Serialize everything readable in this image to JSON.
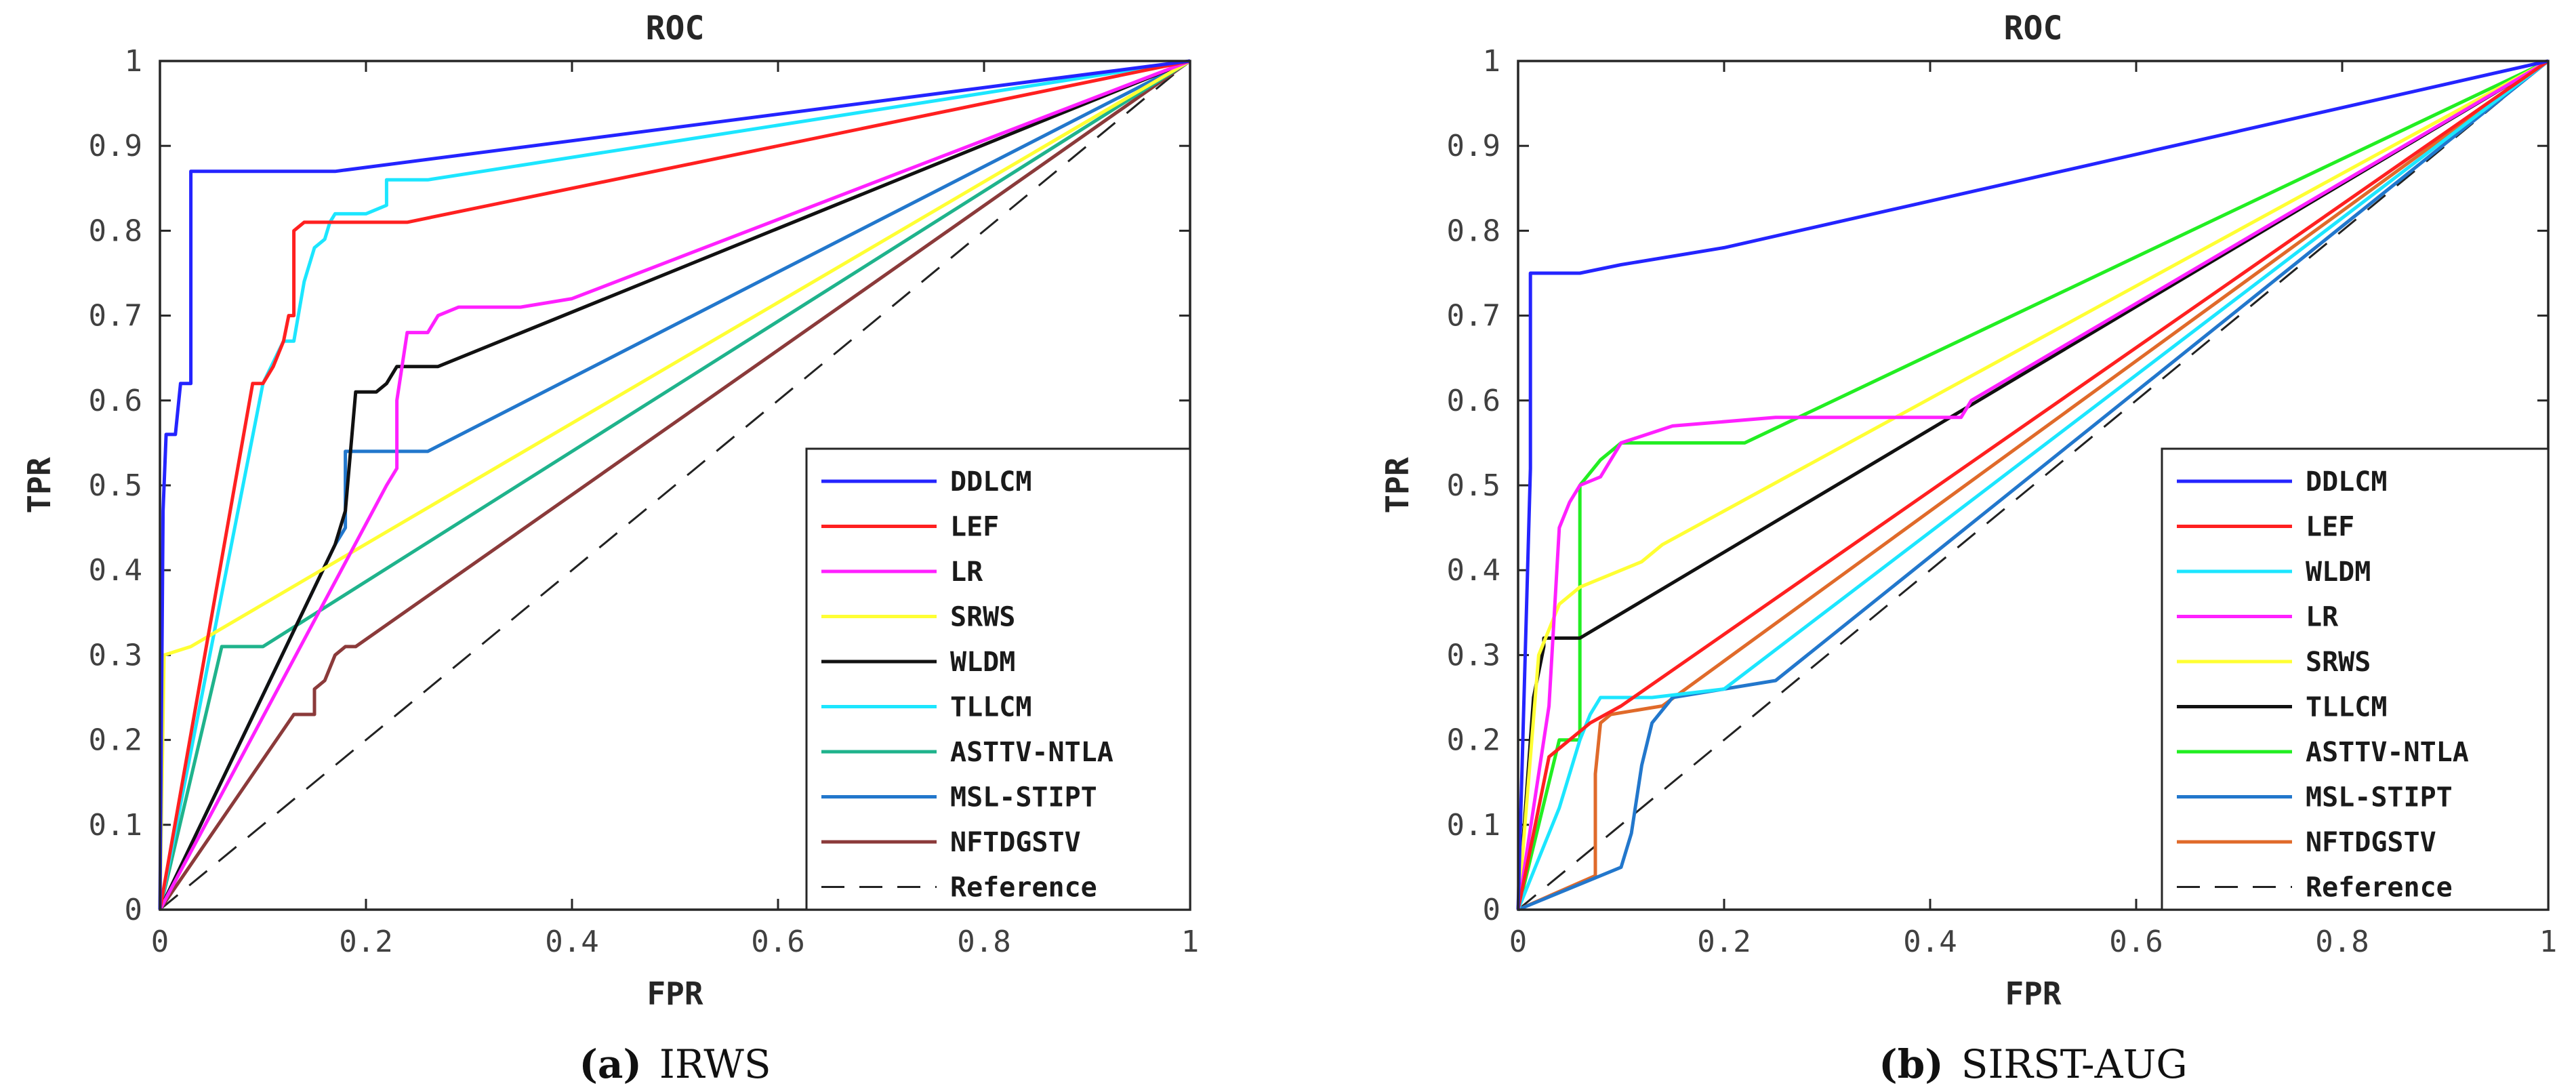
{
  "chart_data": [
    {
      "type": "line",
      "title": "ROC",
      "xlabel": "FPR",
      "ylabel": "TPR",
      "xlim": [
        0,
        1
      ],
      "ylim": [
        0,
        1
      ],
      "xticks": [
        "0",
        "0.2",
        "0.4",
        "0.6",
        "0.8",
        "1"
      ],
      "yticks": [
        "0",
        "0.1",
        "0.2",
        "0.3",
        "0.4",
        "0.5",
        "0.6",
        "0.7",
        "0.8",
        "0.9",
        "1"
      ],
      "legend_position": "bottom-right",
      "caption": {
        "label": "(a)",
        "text": "IRWS"
      },
      "series": [
        {
          "name": "DDLCM",
          "color": "#2424ff",
          "dash": "solid",
          "x": [
            0,
            0.003,
            0.006,
            0.015,
            0.02,
            0.03,
            0.03,
            0.17,
            1
          ],
          "y": [
            0,
            0.47,
            0.56,
            0.56,
            0.62,
            0.62,
            0.87,
            0.87,
            1
          ]
        },
        {
          "name": "LEF",
          "color": "#ff2020",
          "dash": "solid",
          "x": [
            0,
            0.09,
            0.1,
            0.11,
            0.12,
            0.125,
            0.13,
            0.13,
            0.14,
            0.24,
            1
          ],
          "y": [
            0,
            0.62,
            0.62,
            0.64,
            0.67,
            0.7,
            0.7,
            0.8,
            0.81,
            0.81,
            1
          ]
        },
        {
          "name": "LR",
          "color": "#ff20ff",
          "dash": "solid",
          "x": [
            0,
            0.22,
            0.23,
            0.23,
            0.24,
            0.26,
            0.27,
            0.29,
            0.35,
            0.4,
            1
          ],
          "y": [
            0,
            0.5,
            0.52,
            0.6,
            0.68,
            0.68,
            0.7,
            0.71,
            0.71,
            0.72,
            1
          ]
        },
        {
          "name": "SRWS",
          "color": "#ffff33",
          "dash": "solid",
          "x": [
            0,
            0.004,
            0.03,
            1
          ],
          "y": [
            0,
            0.3,
            0.31,
            1
          ]
        },
        {
          "name": "WLDM",
          "color": "#111111",
          "dash": "solid",
          "x": [
            0,
            0.17,
            0.18,
            0.19,
            0.21,
            0.22,
            0.23,
            0.27,
            1
          ],
          "y": [
            0,
            0.43,
            0.47,
            0.61,
            0.61,
            0.62,
            0.64,
            0.64,
            1
          ]
        },
        {
          "name": "TLLCM",
          "color": "#1ce6ff",
          "dash": "solid",
          "x": [
            0,
            0.1,
            0.12,
            0.13,
            0.14,
            0.15,
            0.16,
            0.165,
            0.17,
            0.2,
            0.22,
            0.22,
            0.26,
            1
          ],
          "y": [
            0,
            0.62,
            0.67,
            0.67,
            0.74,
            0.78,
            0.79,
            0.81,
            0.82,
            0.82,
            0.83,
            0.86,
            0.86,
            1
          ]
        },
        {
          "name": "ASTTV-NTLA",
          "color": "#1fb38c",
          "dash": "solid",
          "x": [
            0,
            0.06,
            0.1,
            1
          ],
          "y": [
            0,
            0.31,
            0.31,
            1
          ]
        },
        {
          "name": "MSL-STIPT",
          "color": "#2277cc",
          "dash": "solid",
          "x": [
            0,
            0.17,
            0.18,
            0.18,
            0.2,
            0.26,
            1
          ],
          "y": [
            0,
            0.43,
            0.45,
            0.54,
            0.54,
            0.54,
            1
          ]
        },
        {
          "name": "NFTDGSTV",
          "color": "#8b3a3a",
          "dash": "solid",
          "x": [
            0,
            0.13,
            0.15,
            0.15,
            0.16,
            0.17,
            0.18,
            0.19,
            1
          ],
          "y": [
            0,
            0.23,
            0.23,
            0.26,
            0.27,
            0.3,
            0.31,
            0.31,
            1
          ]
        },
        {
          "name": "Reference",
          "color": "#222222",
          "dash": "dashed",
          "x": [
            0,
            1
          ],
          "y": [
            0,
            1
          ]
        }
      ]
    },
    {
      "type": "line",
      "title": "ROC",
      "xlabel": "FPR",
      "ylabel": "TPR",
      "xlim": [
        0,
        1
      ],
      "ylim": [
        0,
        1
      ],
      "xticks": [
        "0",
        "0.2",
        "0.4",
        "0.6",
        "0.8",
        "1"
      ],
      "yticks": [
        "0",
        "0.1",
        "0.2",
        "0.3",
        "0.4",
        "0.5",
        "0.6",
        "0.7",
        "0.8",
        "0.9",
        "1"
      ],
      "legend_position": "bottom-right",
      "caption": {
        "label": "(b)",
        "text": "SIRST-AUG"
      },
      "series": [
        {
          "name": "DDLCM",
          "color": "#2424ff",
          "dash": "solid",
          "x": [
            0,
            0.012,
            0.012,
            0.06,
            0.1,
            0.15,
            0.2,
            1
          ],
          "y": [
            0,
            0.52,
            0.75,
            0.75,
            0.76,
            0.77,
            0.78,
            1
          ]
        },
        {
          "name": "LEF",
          "color": "#ff2020",
          "dash": "solid",
          "x": [
            0,
            0.03,
            0.05,
            0.07,
            0.1,
            1
          ],
          "y": [
            0,
            0.18,
            0.2,
            0.22,
            0.24,
            1
          ]
        },
        {
          "name": "WLDM",
          "color": "#1ce6ff",
          "dash": "solid",
          "x": [
            0,
            0.04,
            0.06,
            0.07,
            0.08,
            0.13,
            0.2,
            1
          ],
          "y": [
            0,
            0.12,
            0.2,
            0.23,
            0.25,
            0.25,
            0.26,
            1
          ]
        },
        {
          "name": "LR",
          "color": "#ff20ff",
          "dash": "solid",
          "x": [
            0,
            0.03,
            0.04,
            0.05,
            0.06,
            0.08,
            0.1,
            0.15,
            0.25,
            0.43,
            0.44,
            1
          ],
          "y": [
            0,
            0.24,
            0.45,
            0.48,
            0.5,
            0.51,
            0.55,
            0.57,
            0.58,
            0.58,
            0.6,
            1
          ]
        },
        {
          "name": "SRWS",
          "color": "#ffff33",
          "dash": "solid",
          "x": [
            0,
            0.02,
            0.04,
            0.06,
            0.08,
            0.12,
            0.14,
            1
          ],
          "y": [
            0,
            0.3,
            0.36,
            0.38,
            0.39,
            0.41,
            0.43,
            1
          ]
        },
        {
          "name": "TLLCM",
          "color": "#111111",
          "dash": "solid",
          "x": [
            0,
            0.015,
            0.025,
            0.025,
            0.06,
            1
          ],
          "y": [
            0,
            0.25,
            0.31,
            0.32,
            0.32,
            1
          ]
        },
        {
          "name": "ASTTV-NTLA",
          "color": "#22ee22",
          "dash": "solid",
          "x": [
            0,
            0.04,
            0.06,
            0.06,
            0.08,
            0.1,
            0.22,
            1
          ],
          "y": [
            0,
            0.2,
            0.2,
            0.5,
            0.53,
            0.55,
            0.55,
            1
          ]
        },
        {
          "name": "MSL-STIPT",
          "color": "#2277cc",
          "dash": "solid",
          "x": [
            0,
            0.1,
            0.11,
            0.12,
            0.13,
            0.15,
            0.2,
            0.25,
            1
          ],
          "y": [
            0,
            0.05,
            0.09,
            0.17,
            0.22,
            0.25,
            0.26,
            0.27,
            1
          ]
        },
        {
          "name": "NFTDGSTV",
          "color": "#e06a2a",
          "dash": "solid",
          "x": [
            0,
            0.075,
            0.075,
            0.08,
            0.09,
            0.14,
            1
          ],
          "y": [
            0,
            0.04,
            0.16,
            0.22,
            0.23,
            0.24,
            1
          ]
        },
        {
          "name": "Reference",
          "color": "#222222",
          "dash": "dashed",
          "x": [
            0,
            1
          ],
          "y": [
            0,
            1
          ]
        }
      ]
    }
  ]
}
